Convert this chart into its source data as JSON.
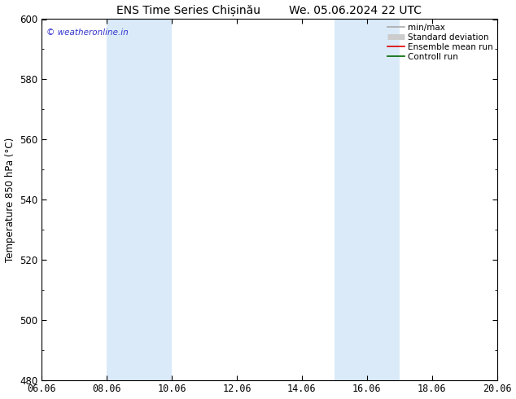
{
  "title_left": "ENS Time Series Chișinău",
  "title_right": "We. 05.06.2024 22 UTC",
  "ylabel": "Temperature 850 hPa (°C)",
  "ylim": [
    480,
    600
  ],
  "yticks": [
    480,
    500,
    520,
    540,
    560,
    580,
    600
  ],
  "xlim": [
    0,
    14
  ],
  "xtick_positions": [
    0,
    2,
    4,
    6,
    8,
    10,
    12,
    14
  ],
  "xtick_labels": [
    "06.06",
    "08.06",
    "10.06",
    "12.06",
    "14.06",
    "16.06",
    "18.06",
    "20.06"
  ],
  "shaded_bands": [
    {
      "xmin": 2,
      "xmax": 4,
      "color": "#daeaf8"
    },
    {
      "xmin": 9,
      "xmax": 11,
      "color": "#daeaf8"
    }
  ],
  "legend_entries": [
    {
      "label": "min/max",
      "color": "#aaaaaa",
      "lw": 1.2,
      "type": "line"
    },
    {
      "label": "Standard deviation",
      "color": "#cccccc",
      "lw": 5,
      "type": "bar"
    },
    {
      "label": "Ensemble mean run",
      "color": "#dd0000",
      "lw": 1.2,
      "type": "line"
    },
    {
      "label": "Controll run",
      "color": "#006600",
      "lw": 1.2,
      "type": "line"
    }
  ],
  "watermark": "© weatheronline.in",
  "watermark_color": "#3333cc",
  "background_color": "#ffffff",
  "plot_bg_color": "#ffffff",
  "title_fontsize": 10,
  "axis_label_fontsize": 8.5,
  "tick_fontsize": 8.5,
  "legend_fontsize": 7.5
}
